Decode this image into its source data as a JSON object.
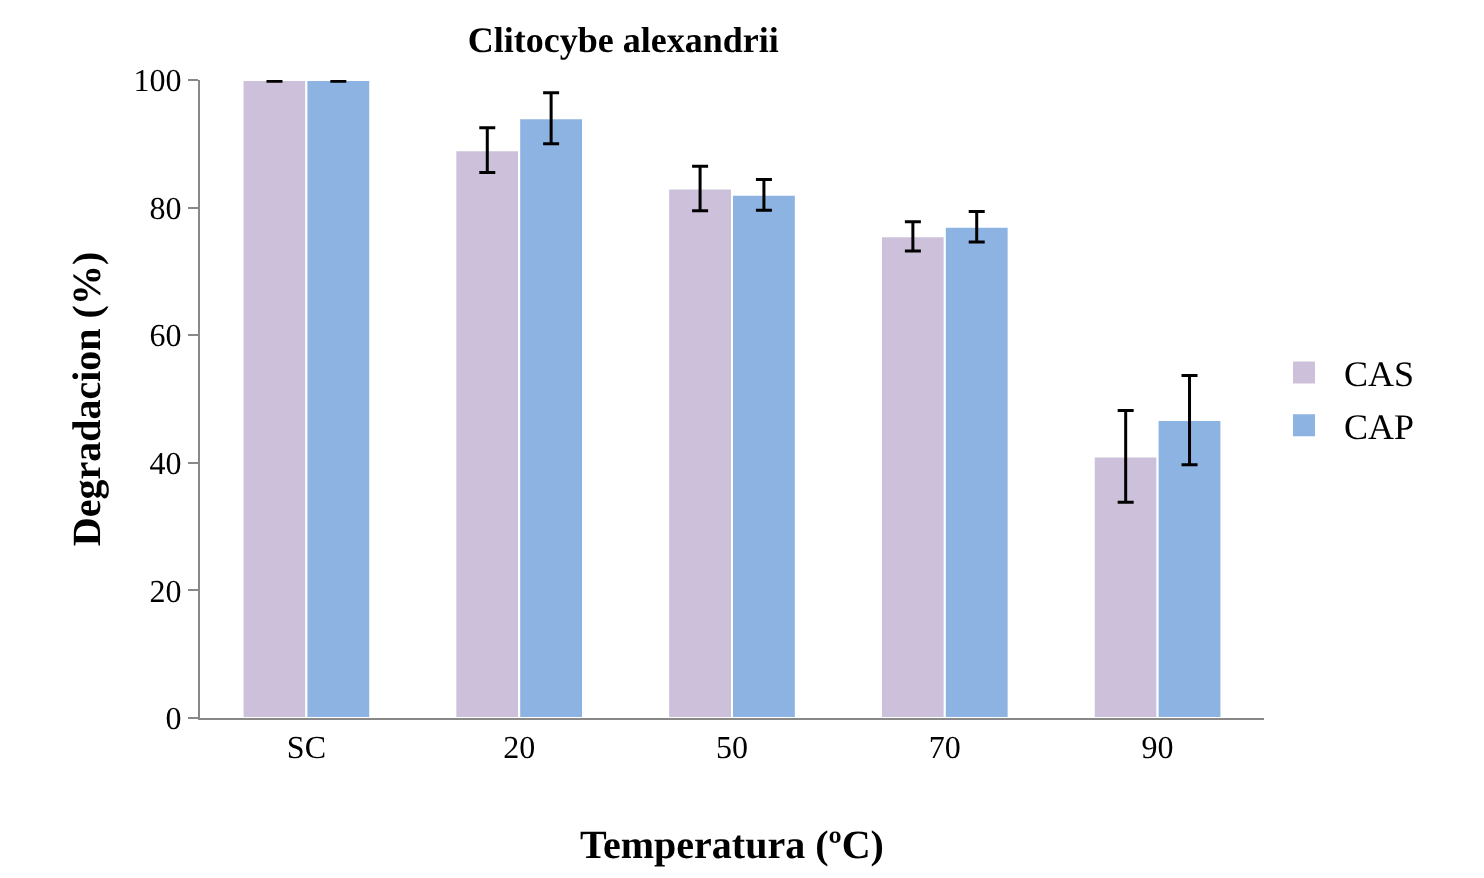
{
  "chart_data": {
    "type": "bar",
    "title": "Clitocybe alexandrii",
    "xlabel": "Temperatura (ºC)",
    "ylabel": "Degradacion (%)",
    "categories": [
      "SC",
      "20",
      "50",
      "70",
      "90"
    ],
    "series": [
      {
        "name": "CAS",
        "color": "#ccc0da",
        "values": [
          100,
          89,
          83,
          75.5,
          41
        ],
        "errors": [
          0.2,
          3.5,
          3.5,
          2.3,
          7.2
        ]
      },
      {
        "name": "CAP",
        "color": "#8db3e2",
        "values": [
          100,
          94,
          82,
          77,
          46.7
        ],
        "errors": [
          0.2,
          4,
          2.4,
          2.4,
          7
        ]
      }
    ],
    "ylim": [
      0,
      100
    ],
    "yticks": [
      0,
      20,
      40,
      60,
      80,
      100
    ],
    "grid": false,
    "legend": "right"
  }
}
